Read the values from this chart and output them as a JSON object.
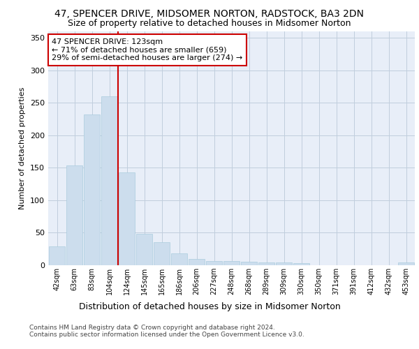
{
  "title1": "47, SPENCER DRIVE, MIDSOMER NORTON, RADSTOCK, BA3 2DN",
  "title2": "Size of property relative to detached houses in Midsomer Norton",
  "xlabel": "Distribution of detached houses by size in Midsomer Norton",
  "ylabel": "Number of detached properties",
  "footer": "Contains HM Land Registry data © Crown copyright and database right 2024.\nContains public sector information licensed under the Open Government Licence v3.0.",
  "categories": [
    "42sqm",
    "63sqm",
    "83sqm",
    "104sqm",
    "124sqm",
    "145sqm",
    "165sqm",
    "186sqm",
    "206sqm",
    "227sqm",
    "248sqm",
    "268sqm",
    "289sqm",
    "309sqm",
    "330sqm",
    "350sqm",
    "371sqm",
    "391sqm",
    "412sqm",
    "432sqm",
    "453sqm"
  ],
  "values": [
    29,
    154,
    232,
    260,
    143,
    48,
    35,
    18,
    10,
    6,
    6,
    5,
    4,
    4,
    3,
    0,
    0,
    0,
    0,
    0,
    4
  ],
  "bar_color": "#ccdded",
  "bar_edge_color": "#aaccdd",
  "marker_line_color": "#cc0000",
  "annotation_line1": "47 SPENCER DRIVE: 123sqm",
  "annotation_line2": "← 71% of detached houses are smaller (659)",
  "annotation_line3": "29% of semi-detached houses are larger (274) →",
  "annotation_box_color": "#cc0000",
  "ylim": [
    0,
    360
  ],
  "yticks": [
    0,
    50,
    100,
    150,
    200,
    250,
    300,
    350
  ],
  "grid_color": "#c0cedd",
  "bg_color": "#e8eef8",
  "title_fontsize": 10,
  "subtitle_fontsize": 9,
  "bar_width": 0.9
}
